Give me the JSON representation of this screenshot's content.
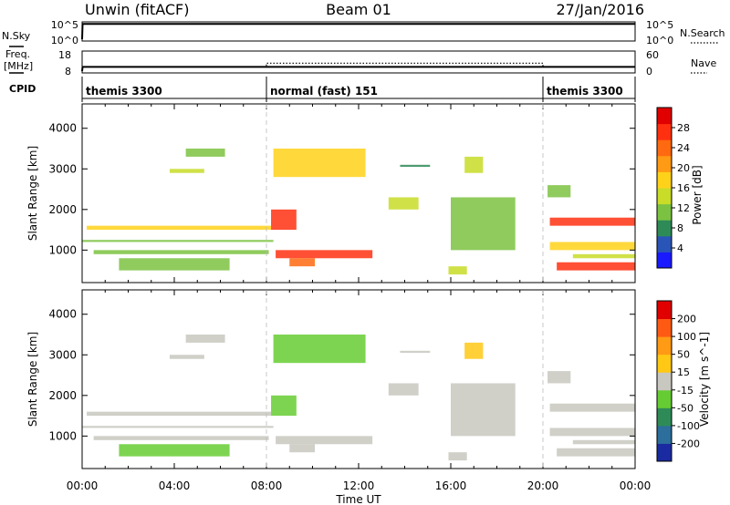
{
  "header": {
    "station": "Unwin (fitACF)",
    "beam": "Beam 01",
    "date": "27/Jan/2016"
  },
  "sky_panel": {
    "label": "N.Sky",
    "left_ticks": [
      "10^5",
      "10^0"
    ],
    "right_ticks": [
      "10^5",
      "10^0"
    ],
    "right_label": "N.Search"
  },
  "freq_panel": {
    "label_line1": "Freq.",
    "label_line2": "[MHz]",
    "left_ticks": [
      "18",
      "8"
    ],
    "right_ticks": [
      "60",
      "0"
    ],
    "right_label": "Nave"
  },
  "cpid_panel": {
    "label": "CPID",
    "segments": [
      {
        "name": "themis 3300",
        "start_h": 0,
        "end_h": 8
      },
      {
        "name": "normal (fast) 151",
        "start_h": 8,
        "end_h": 20
      },
      {
        "name": "themis 3300",
        "start_h": 20,
        "end_h": 24
      }
    ]
  },
  "x_axis": {
    "label": "Time UT",
    "ticks": [
      "00:00",
      "04:00",
      "08:00",
      "12:00",
      "16:00",
      "20:00",
      "00:00"
    ],
    "range_h": [
      0,
      24
    ]
  },
  "power_panel": {
    "ylabel": "Slant Range [km]",
    "yticks": [
      "4000",
      "3000",
      "2000",
      "1000"
    ],
    "colorbar_label": "Power [dB]",
    "colorbar_ticks": [
      "28",
      "24",
      "20",
      "16",
      "12",
      "8",
      "4"
    ],
    "colors": [
      "#1a1aff",
      "#2a55b8",
      "#2e8b57",
      "#7cc242",
      "#c8dc28",
      "#ffd21a",
      "#ff9a14",
      "#ff6a10",
      "#ff3010",
      "#e00000"
    ]
  },
  "velocity_panel": {
    "ylabel": "Slant Range [km]",
    "yticks": [
      "4000",
      "3000",
      "2000",
      "1000"
    ],
    "colorbar_label": "Velocity [m s^-1]",
    "colorbar_ticks": [
      "200",
      "100",
      "50",
      "15",
      "-15",
      "-50",
      "-100",
      "-200"
    ],
    "colors": [
      "#1a2aa0",
      "#2c6e9c",
      "#2e8b57",
      "#66cc33",
      "#c8c8c0",
      "#ffc814",
      "#ff9a14",
      "#ff5a14",
      "#e00000"
    ]
  },
  "chart_data": [
    {
      "type": "line",
      "title": "N.Sky",
      "scale": "log",
      "ylim": [
        1,
        100000
      ],
      "x": [
        0,
        0.02,
        4,
        8,
        12,
        16,
        20,
        24
      ],
      "values": [
        1,
        80000,
        80000,
        80000,
        80000,
        80000,
        80000,
        80000
      ]
    },
    {
      "type": "line",
      "title": "Freq. [MHz]",
      "ylim": [
        8,
        18
      ],
      "x": [
        0,
        0.02,
        24
      ],
      "values": [
        8,
        10.3,
        10.3
      ],
      "nave": {
        "x": [
          0,
          8,
          8,
          20,
          20,
          24
        ],
        "values": [
          14,
          14,
          26,
          26,
          14,
          14
        ],
        "ylim": [
          0,
          60
        ]
      }
    },
    {
      "type": "heatmap",
      "title": "Power [dB]",
      "xlim": [
        0,
        24
      ],
      "ylim": [
        200,
        4600
      ],
      "clim": [
        0,
        32
      ],
      "series": [
        {
          "name": "Power [dB]",
          "x": [
            0.2,
            8.2,
            0,
            8.3,
            8.4,
            12.6,
            0.5,
            8.1,
            8.2,
            9.3,
            13.3,
            14.6,
            8.3,
            12.3,
            3.8,
            5.3,
            1.6,
            6.4,
            9.0,
            10.1,
            4.5,
            6.2,
            13.8,
            15.1,
            16.6,
            17.4,
            15.9,
            16.7,
            16.0,
            18.8,
            20.3,
            24.0,
            20.3,
            24.0,
            20.6,
            24.0,
            21.3,
            24.0,
            20.2,
            21.2
          ],
          "y": [
            1500,
            1600,
            1200,
            1250,
            800,
            1000,
            1000,
            900,
            1500,
            2000,
            2000,
            2300,
            2800,
            3500,
            3000,
            2900,
            500,
            800,
            600,
            800,
            3500,
            3300,
            3100,
            3050,
            3300,
            2900,
            600,
            400,
            2300,
            1000,
            1600,
            1800,
            1000,
            1200,
            500,
            700,
            800,
            900,
            2300,
            2600
          ],
          "values": [
            14,
            24,
            9,
            12,
            29,
            26,
            8,
            12,
            24,
            28,
            12,
            16,
            20,
            17,
            14,
            12,
            8,
            16,
            29,
            22,
            10,
            14,
            8,
            10,
            12,
            16,
            10,
            20,
            10,
            10,
            26,
            28,
            24,
            12,
            28,
            26,
            16,
            12,
            8,
            14
          ]
        }
      ]
    },
    {
      "type": "heatmap",
      "title": "Velocity [m s^-1]",
      "xlim": [
        0,
        24
      ],
      "ylim": [
        200,
        4600
      ],
      "clim": [
        -200,
        200
      ],
      "series": [
        {
          "name": "Velocity [m s^-1]",
          "x": [
            0.2,
            8.2,
            0,
            8.3,
            8.4,
            12.6,
            0.5,
            8.1,
            8.2,
            9.3,
            13.3,
            14.6,
            8.3,
            12.3,
            3.8,
            5.3,
            1.6,
            6.4,
            9.0,
            10.1,
            4.5,
            6.2,
            13.8,
            15.1,
            16.6,
            17.4,
            15.9,
            16.7,
            16.0,
            18.8,
            20.3,
            24.0,
            20.3,
            24.0,
            20.6,
            24.0,
            21.3,
            24.0,
            20.2,
            21.2
          ],
          "y": [
            1500,
            1600,
            1200,
            1250,
            800,
            1000,
            1000,
            900,
            1500,
            2000,
            2000,
            2300,
            2800,
            3500,
            3000,
            2900,
            500,
            800,
            600,
            800,
            3500,
            3300,
            3100,
            3050,
            3300,
            2900,
            600,
            400,
            2300,
            1000,
            1600,
            1800,
            1000,
            1200,
            500,
            700,
            800,
            900,
            2300,
            2600
          ],
          "values": [
            0,
            -20,
            -30,
            0,
            0,
            0,
            0,
            0,
            -50,
            -60,
            0,
            0,
            -40,
            -50,
            0,
            0,
            -100,
            0,
            0,
            0,
            0,
            0,
            0,
            0,
            60,
            50,
            40,
            0,
            0,
            0,
            0,
            0,
            0,
            0,
            0,
            0,
            0,
            0,
            0,
            0
          ]
        }
      ]
    }
  ]
}
